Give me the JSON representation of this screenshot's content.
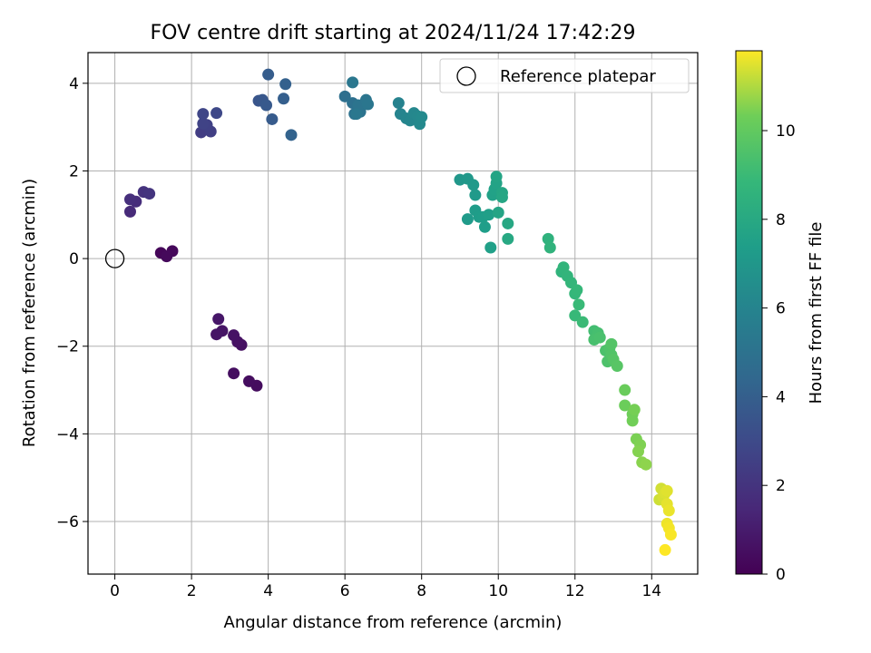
{
  "chart_data": {
    "type": "scatter",
    "title": "FOV centre drift starting at 2024/11/24 17:42:29",
    "xlabel": "Angular distance from reference (arcmin)",
    "ylabel": "Rotation from reference (arcmin)",
    "xlim": [
      -0.7,
      15.2
    ],
    "ylim": [
      -7.2,
      4.7
    ],
    "xticks": [
      "0",
      "2",
      "4",
      "6",
      "8",
      "10",
      "12",
      "14"
    ],
    "yticks": [
      "−6",
      "−4",
      "−2",
      "0",
      "2",
      "4"
    ],
    "grid": true,
    "legend": {
      "placement": "top-right",
      "entries": [
        {
          "label": "Reference platepar",
          "marker": "open-circle"
        }
      ]
    },
    "reference_point": {
      "x": 0,
      "y": 0
    },
    "colorbar": {
      "label": "Hours from first FF file",
      "colormap": "viridis",
      "range": [
        0,
        11.8
      ],
      "ticks": [
        "0",
        "2",
        "4",
        "6",
        "8",
        "10"
      ]
    },
    "points": [
      {
        "x": 1.2,
        "y": 0.13,
        "c": 0.2
      },
      {
        "x": 1.5,
        "y": 0.17,
        "c": 0.25
      },
      {
        "x": 1.35,
        "y": 0.05,
        "c": 0.3
      },
      {
        "x": 3.7,
        "y": -2.9,
        "c": 0.4
      },
      {
        "x": 3.5,
        "y": -2.8,
        "c": 0.45
      },
      {
        "x": 3.1,
        "y": -2.62,
        "c": 0.5
      },
      {
        "x": 3.3,
        "y": -1.97,
        "c": 0.55
      },
      {
        "x": 3.2,
        "y": -1.9,
        "c": 0.6
      },
      {
        "x": 3.1,
        "y": -1.75,
        "c": 0.65
      },
      {
        "x": 2.8,
        "y": -1.65,
        "c": 0.7
      },
      {
        "x": 2.65,
        "y": -1.73,
        "c": 0.75
      },
      {
        "x": 2.7,
        "y": -1.38,
        "c": 0.8
      },
      {
        "x": 0.4,
        "y": 1.07,
        "c": 1.6
      },
      {
        "x": 0.55,
        "y": 1.3,
        "c": 1.7
      },
      {
        "x": 0.4,
        "y": 1.35,
        "c": 1.8
      },
      {
        "x": 0.75,
        "y": 1.52,
        "c": 1.9
      },
      {
        "x": 0.9,
        "y": 1.48,
        "c": 2.0
      },
      {
        "x": 2.25,
        "y": 2.88,
        "c": 2.4
      },
      {
        "x": 2.5,
        "y": 2.9,
        "c": 2.5
      },
      {
        "x": 2.4,
        "y": 3.05,
        "c": 2.6
      },
      {
        "x": 2.3,
        "y": 3.08,
        "c": 2.7
      },
      {
        "x": 2.3,
        "y": 3.3,
        "c": 2.8
      },
      {
        "x": 2.65,
        "y": 3.32,
        "c": 2.9
      },
      {
        "x": 3.75,
        "y": 3.6,
        "c": 3.5
      },
      {
        "x": 3.85,
        "y": 3.62,
        "c": 3.6
      },
      {
        "x": 3.95,
        "y": 3.5,
        "c": 3.7
      },
      {
        "x": 4.1,
        "y": 3.18,
        "c": 3.8
      },
      {
        "x": 4.0,
        "y": 4.2,
        "c": 3.9
      },
      {
        "x": 4.4,
        "y": 3.65,
        "c": 4.0
      },
      {
        "x": 4.45,
        "y": 3.98,
        "c": 4.1
      },
      {
        "x": 4.6,
        "y": 2.82,
        "c": 4.2
      },
      {
        "x": 6.0,
        "y": 3.7,
        "c": 4.8
      },
      {
        "x": 6.2,
        "y": 3.55,
        "c": 4.9
      },
      {
        "x": 6.25,
        "y": 3.3,
        "c": 5.0
      },
      {
        "x": 6.4,
        "y": 3.35,
        "c": 5.05
      },
      {
        "x": 6.35,
        "y": 3.5,
        "c": 5.1
      },
      {
        "x": 6.55,
        "y": 3.62,
        "c": 5.15
      },
      {
        "x": 6.6,
        "y": 3.52,
        "c": 5.2
      },
      {
        "x": 6.2,
        "y": 4.02,
        "c": 5.25
      },
      {
        "x": 6.3,
        "y": 3.3,
        "c": 5.3
      },
      {
        "x": 7.4,
        "y": 3.55,
        "c": 5.9
      },
      {
        "x": 7.45,
        "y": 3.3,
        "c": 6.0
      },
      {
        "x": 7.6,
        "y": 3.2,
        "c": 6.05
      },
      {
        "x": 7.7,
        "y": 3.15,
        "c": 6.1
      },
      {
        "x": 7.8,
        "y": 3.32,
        "c": 6.15
      },
      {
        "x": 7.9,
        "y": 3.25,
        "c": 6.2
      },
      {
        "x": 7.95,
        "y": 3.07,
        "c": 6.25
      },
      {
        "x": 8.0,
        "y": 3.23,
        "c": 6.3
      },
      {
        "x": 9.0,
        "y": 1.8,
        "c": 7.0
      },
      {
        "x": 9.2,
        "y": 1.82,
        "c": 7.05
      },
      {
        "x": 9.35,
        "y": 1.68,
        "c": 7.1
      },
      {
        "x": 9.4,
        "y": 1.45,
        "c": 7.15
      },
      {
        "x": 9.2,
        "y": 0.9,
        "c": 7.2
      },
      {
        "x": 9.4,
        "y": 1.1,
        "c": 7.25
      },
      {
        "x": 9.5,
        "y": 0.95,
        "c": 7.3
      },
      {
        "x": 9.6,
        "y": 0.95,
        "c": 7.35
      },
      {
        "x": 9.65,
        "y": 0.72,
        "c": 7.4
      },
      {
        "x": 9.75,
        "y": 1.0,
        "c": 7.45
      },
      {
        "x": 9.8,
        "y": 0.25,
        "c": 7.5
      },
      {
        "x": 9.85,
        "y": 1.45,
        "c": 7.55
      },
      {
        "x": 9.9,
        "y": 1.58,
        "c": 7.6
      },
      {
        "x": 9.95,
        "y": 1.72,
        "c": 7.65
      },
      {
        "x": 9.95,
        "y": 1.87,
        "c": 7.7
      },
      {
        "x": 10.0,
        "y": 1.05,
        "c": 7.75
      },
      {
        "x": 10.1,
        "y": 1.5,
        "c": 7.8
      },
      {
        "x": 10.1,
        "y": 1.4,
        "c": 7.85
      },
      {
        "x": 10.25,
        "y": 0.8,
        "c": 7.9
      },
      {
        "x": 10.25,
        "y": 0.45,
        "c": 7.95
      },
      {
        "x": 11.3,
        "y": 0.45,
        "c": 8.5
      },
      {
        "x": 11.35,
        "y": 0.25,
        "c": 8.55
      },
      {
        "x": 11.65,
        "y": -0.3,
        "c": 8.6
      },
      {
        "x": 11.7,
        "y": -0.2,
        "c": 8.65
      },
      {
        "x": 11.8,
        "y": -0.4,
        "c": 8.7
      },
      {
        "x": 11.9,
        "y": -0.55,
        "c": 8.75
      },
      {
        "x": 12.0,
        "y": -0.8,
        "c": 8.8
      },
      {
        "x": 12.05,
        "y": -0.72,
        "c": 8.85
      },
      {
        "x": 12.0,
        "y": -1.3,
        "c": 8.9
      },
      {
        "x": 12.1,
        "y": -1.05,
        "c": 8.95
      },
      {
        "x": 12.2,
        "y": -1.45,
        "c": 9.0
      },
      {
        "x": 12.5,
        "y": -1.65,
        "c": 9.2
      },
      {
        "x": 12.55,
        "y": -1.8,
        "c": 9.25
      },
      {
        "x": 12.6,
        "y": -1.7,
        "c": 9.3
      },
      {
        "x": 12.5,
        "y": -1.85,
        "c": 9.35
      },
      {
        "x": 12.65,
        "y": -1.8,
        "c": 9.4
      },
      {
        "x": 12.8,
        "y": -2.1,
        "c": 9.45
      },
      {
        "x": 12.85,
        "y": -2.35,
        "c": 9.5
      },
      {
        "x": 12.9,
        "y": -2.05,
        "c": 9.55
      },
      {
        "x": 12.95,
        "y": -2.2,
        "c": 9.6
      },
      {
        "x": 12.95,
        "y": -1.95,
        "c": 9.65
      },
      {
        "x": 13.0,
        "y": -2.3,
        "c": 9.7
      },
      {
        "x": 13.1,
        "y": -2.45,
        "c": 9.75
      },
      {
        "x": 13.3,
        "y": -3.0,
        "c": 10.2
      },
      {
        "x": 13.3,
        "y": -3.35,
        "c": 10.25
      },
      {
        "x": 13.5,
        "y": -3.55,
        "c": 10.3
      },
      {
        "x": 13.5,
        "y": -3.7,
        "c": 10.35
      },
      {
        "x": 13.55,
        "y": -3.45,
        "c": 10.4
      },
      {
        "x": 13.6,
        "y": -4.12,
        "c": 10.45
      },
      {
        "x": 13.7,
        "y": -4.25,
        "c": 10.5
      },
      {
        "x": 13.65,
        "y": -4.4,
        "c": 10.55
      },
      {
        "x": 13.75,
        "y": -4.65,
        "c": 10.6
      },
      {
        "x": 13.85,
        "y": -4.7,
        "c": 10.65
      },
      {
        "x": 14.2,
        "y": -5.5,
        "c": 11.3
      },
      {
        "x": 14.25,
        "y": -5.25,
        "c": 11.35
      },
      {
        "x": 14.3,
        "y": -5.45,
        "c": 11.4
      },
      {
        "x": 14.35,
        "y": -5.35,
        "c": 11.45
      },
      {
        "x": 14.4,
        "y": -5.3,
        "c": 11.5
      },
      {
        "x": 14.4,
        "y": -5.6,
        "c": 11.55
      },
      {
        "x": 14.45,
        "y": -5.75,
        "c": 11.6
      },
      {
        "x": 14.4,
        "y": -6.05,
        "c": 11.65
      },
      {
        "x": 14.45,
        "y": -6.15,
        "c": 11.7
      },
      {
        "x": 14.5,
        "y": -6.3,
        "c": 11.75
      },
      {
        "x": 14.35,
        "y": -6.65,
        "c": 11.8
      }
    ]
  }
}
